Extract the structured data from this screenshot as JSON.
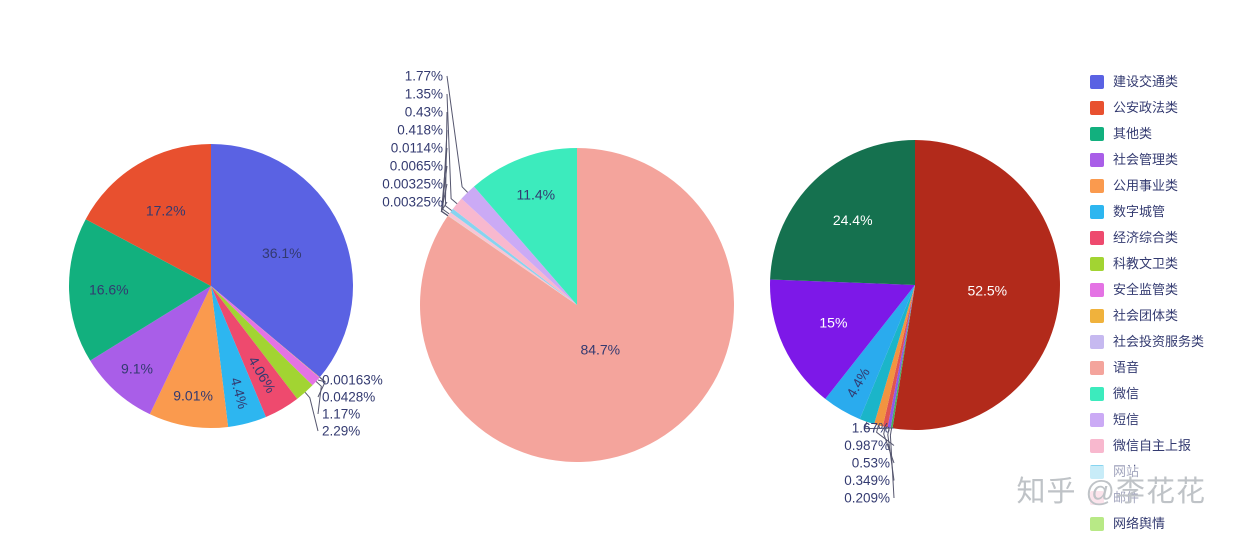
{
  "watermark": {
    "text": "知乎 @李花花"
  },
  "style": {
    "background": "#ffffff",
    "label_color": "#333a70",
    "leader_color": "#55566e"
  },
  "legend": {
    "position": "right",
    "items": [
      {
        "label": "建设交通类",
        "color": "#5a62e3"
      },
      {
        "label": "公安政法类",
        "color": "#e8502f"
      },
      {
        "label": "其他类",
        "color": "#12b07e"
      },
      {
        "label": "社会管理类",
        "color": "#a95ee8"
      },
      {
        "label": "公用事业类",
        "color": "#fa9a4e"
      },
      {
        "label": "数字城管",
        "color": "#2db6f0"
      },
      {
        "label": "经济综合类",
        "color": "#ee4a6e"
      },
      {
        "label": "科教文卫类",
        "color": "#a2d432"
      },
      {
        "label": "安全监管类",
        "color": "#e473e4"
      },
      {
        "label": "社会团体类",
        "color": "#f0b23c"
      },
      {
        "label": "社会投资服务类",
        "color": "#c6b9f0"
      },
      {
        "label": "语音",
        "color": "#f4a49c"
      },
      {
        "label": "微信",
        "color": "#3cebbd"
      },
      {
        "label": "短信",
        "color": "#cbaaf5"
      },
      {
        "label": "微信自主上报",
        "color": "#f8b8ce"
      },
      {
        "label": "网站",
        "color": "#86d4f0"
      },
      {
        "label": "邮件",
        "color": "#f9c4d4"
      },
      {
        "label": "网络舆情",
        "color": "#b8e986"
      }
    ]
  },
  "chart_data": [
    {
      "type": "pie",
      "title": "",
      "legend_position": "right",
      "grid": false,
      "slices_clockwise_from_top": [
        {
          "name": "建设交通类",
          "value": 36.1,
          "label": "36.1%",
          "color": "#5a62e3",
          "label_mode": "inside",
          "label_r": 0.55
        },
        {
          "name": "社会投资服务类",
          "value": 0.00163,
          "label": "0.00163%",
          "color": "#c6b9f0",
          "label_mode": "callout"
        },
        {
          "name": "社会团体类",
          "value": 0.0428,
          "label": "0.0428%",
          "color": "#f0b23c",
          "label_mode": "callout"
        },
        {
          "name": "安全监管类",
          "value": 1.17,
          "label": "1.17%",
          "color": "#e473e4",
          "label_mode": "callout"
        },
        {
          "name": "科教文卫类",
          "value": 2.29,
          "label": "2.29%",
          "color": "#a2d432",
          "label_mode": "callout"
        },
        {
          "name": "经济综合类",
          "value": 4.06,
          "label": "4.06%",
          "color": "#ee4a6e",
          "label_mode": "inside-rotated",
          "label_r": 0.72
        },
        {
          "name": "数字城管",
          "value": 4.4,
          "label": "4.4%",
          "color": "#2db6f0",
          "label_mode": "inside-rotated",
          "label_r": 0.78
        },
        {
          "name": "公用事业类",
          "value": 9.01,
          "label": "9.01%",
          "color": "#fa9a4e",
          "label_mode": "inside",
          "label_r": 0.78
        },
        {
          "name": "社会管理类",
          "value": 9.1,
          "label": "9.1%",
          "color": "#a95ee8",
          "label_mode": "inside",
          "label_r": 0.78
        },
        {
          "name": "其他类",
          "value": 16.6,
          "label": "16.6%",
          "color": "#12b07e",
          "label_mode": "inside",
          "label_r": 0.72
        },
        {
          "name": "公安政法类",
          "value": 17.2,
          "label": "17.2%",
          "color": "#e8502f",
          "label_mode": "inside",
          "label_r": 0.62
        }
      ]
    },
    {
      "type": "pie",
      "title": "",
      "legend_position": "right",
      "grid": false,
      "slices_clockwise_from_top": [
        {
          "name": "语音",
          "value": 84.7,
          "label": "84.7%",
          "color": "#f4a49c",
          "label_mode": "inside",
          "label_r": 0.32
        },
        {
          "name": "",
          "value": 0.00325,
          "label": "0.00325%",
          "color": "#d9d9d9",
          "label_mode": "callout"
        },
        {
          "name": "",
          "value": 0.00325,
          "label": "0.00325%",
          "color": "#bfbfbf",
          "label_mode": "callout"
        },
        {
          "name": "",
          "value": 0.0065,
          "label": "0.0065%",
          "color": "#9fe6b8",
          "label_mode": "callout"
        },
        {
          "name": "网络舆情",
          "value": 0.0114,
          "label": "0.0114%",
          "color": "#b8e986",
          "label_mode": "callout"
        },
        {
          "name": "邮件",
          "value": 0.418,
          "label": "0.418%",
          "color": "#f9c4d4",
          "label_mode": "callout"
        },
        {
          "name": "网站",
          "value": 0.43,
          "label": "0.43%",
          "color": "#86d4f0",
          "label_mode": "callout"
        },
        {
          "name": "微信自主上报",
          "value": 1.35,
          "label": "1.35%",
          "color": "#f8b8ce",
          "label_mode": "callout"
        },
        {
          "name": "短信",
          "value": 1.77,
          "label": "1.77%",
          "color": "#cbaaf5",
          "label_mode": "callout"
        },
        {
          "name": "微信",
          "value": 11.4,
          "label": "11.4%",
          "color": "#3cebbd",
          "label_mode": "inside",
          "label_r": 0.75
        }
      ]
    },
    {
      "type": "pie",
      "title": "",
      "legend_position": "right",
      "grid": false,
      "slices_clockwise_from_top": [
        {
          "name": "",
          "value": 52.5,
          "label": "52.5%",
          "color": "#b22a1b",
          "label_mode": "inside",
          "label_r": 0.5,
          "label_color": "#ffffff"
        },
        {
          "name": "",
          "value": 0.209,
          "label": "0.209%",
          "color": "#46b05e",
          "label_mode": "callout"
        },
        {
          "name": "",
          "value": 0.349,
          "label": "0.349%",
          "color": "#8d59e8",
          "label_mode": "callout"
        },
        {
          "name": "",
          "value": 0.53,
          "label": "0.53%",
          "color": "#e05252",
          "label_mode": "callout"
        },
        {
          "name": "",
          "value": 0.987,
          "label": "0.987%",
          "color": "#f29440",
          "label_mode": "callout"
        },
        {
          "name": "",
          "value": 1.67,
          "label": "1.67%",
          "color": "#1bb5c9",
          "label_mode": "callout"
        },
        {
          "name": "",
          "value": 4.4,
          "label": "4.4%",
          "color": "#2aabee",
          "label_mode": "inside-rotated",
          "label_r": 0.78
        },
        {
          "name": "",
          "value": 15,
          "label": "15%",
          "color": "#7d18e8",
          "label_mode": "inside",
          "label_r": 0.62,
          "label_color": "#ffffff"
        },
        {
          "name": "",
          "value": 24.4,
          "label": "24.4%",
          "color": "#15714f",
          "label_mode": "inside",
          "label_r": 0.62,
          "label_color": "#ffffff"
        }
      ]
    }
  ]
}
